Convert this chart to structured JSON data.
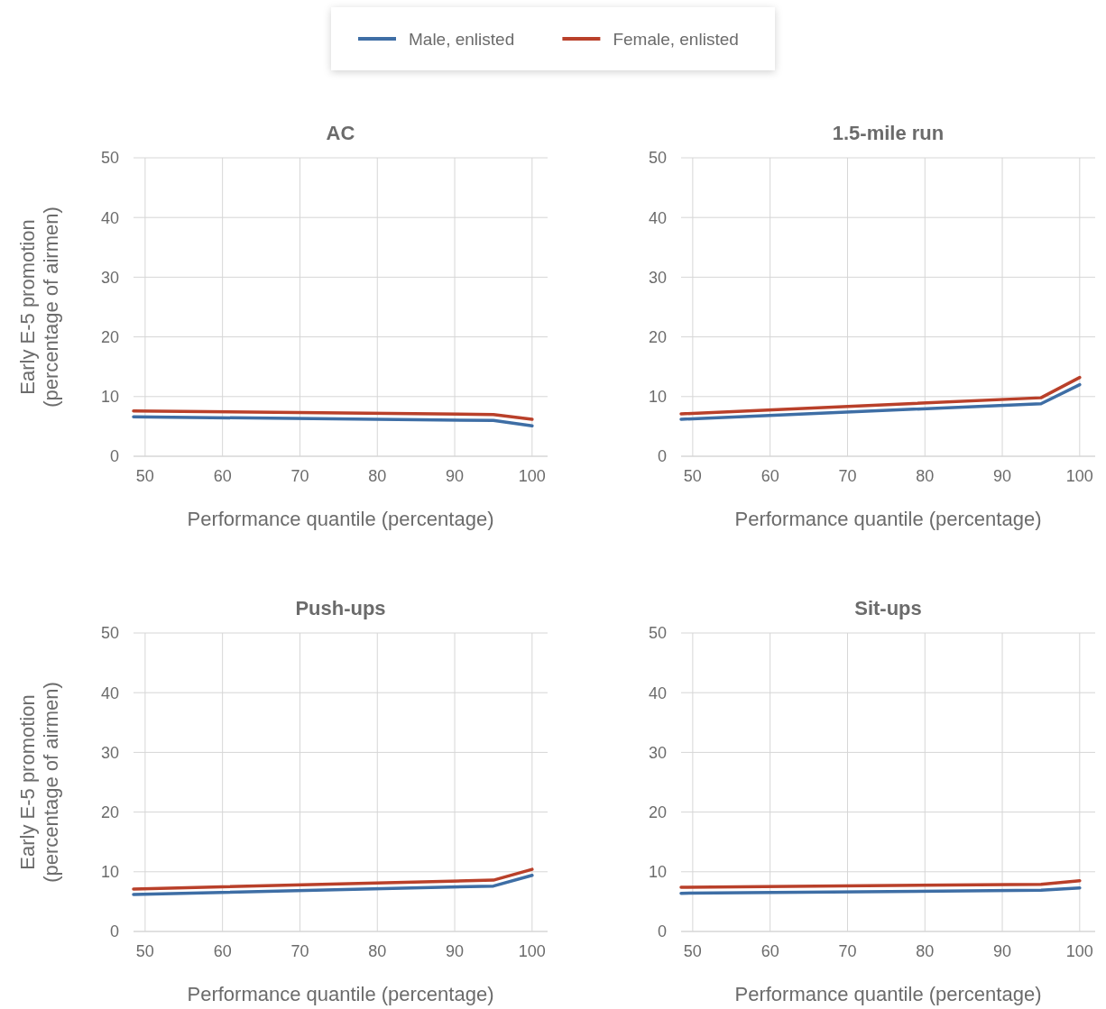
{
  "chart_data": [
    {
      "type": "line",
      "title": "AC",
      "xlabel": "Performance quantile (percentage)",
      "ylabel": "Early E-5 promotion (percentage of airmen)",
      "x": [
        48.5,
        95,
        100
      ],
      "xlim": [
        48.5,
        102
      ],
      "xticks": [
        50,
        60,
        70,
        80,
        90,
        100
      ],
      "ylim": [
        0,
        50
      ],
      "yticks": [
        0,
        10,
        20,
        30,
        40,
        50
      ],
      "grid": true,
      "legend": "top",
      "marker": "none",
      "series": [
        {
          "name": "Male, enlisted",
          "color": "#3e6ea5",
          "values": [
            6.6,
            6.0,
            5.1
          ]
        },
        {
          "name": "Female, enlisted",
          "color": "#b9402a",
          "values": [
            7.6,
            7.0,
            6.2
          ]
        }
      ]
    },
    {
      "type": "line",
      "title": "1.5-mile run",
      "xlabel": "Performance quantile (percentage)",
      "x": [
        48.5,
        95,
        100
      ],
      "xlim": [
        48.5,
        102
      ],
      "xticks": [
        50,
        60,
        70,
        80,
        90,
        100
      ],
      "ylim": [
        0,
        50
      ],
      "yticks": [
        0,
        10,
        20,
        30,
        40,
        50
      ],
      "grid": true,
      "marker": "none",
      "series": [
        {
          "color": "#3e6ea5",
          "values": [
            6.2,
            8.8,
            12.0
          ]
        },
        {
          "color": "#b9402a",
          "values": [
            7.1,
            9.8,
            13.2
          ]
        }
      ]
    },
    {
      "type": "line",
      "title": "Push-ups",
      "xlabel": "Performance quantile (percentage)",
      "ylabel": "Early E-5 promotion (percentage of airmen)",
      "x": [
        48.5,
        95,
        100
      ],
      "xlim": [
        48.5,
        102
      ],
      "xticks": [
        50,
        60,
        70,
        80,
        90,
        100
      ],
      "ylim": [
        0,
        50
      ],
      "yticks": [
        0,
        10,
        20,
        30,
        40,
        50
      ],
      "grid": true,
      "marker": "none",
      "series": [
        {
          "color": "#3e6ea5",
          "values": [
            6.2,
            7.6,
            9.4
          ]
        },
        {
          "color": "#b9402a",
          "values": [
            7.1,
            8.6,
            10.4
          ]
        }
      ]
    },
    {
      "type": "line",
      "title": "Sit-ups",
      "xlabel": "Performance quantile (percentage)",
      "x": [
        48.5,
        95,
        100
      ],
      "xlim": [
        48.5,
        102
      ],
      "xticks": [
        50,
        60,
        70,
        80,
        90,
        100
      ],
      "ylim": [
        0,
        50
      ],
      "yticks": [
        0,
        10,
        20,
        30,
        40,
        50
      ],
      "grid": true,
      "marker": "none",
      "series": [
        {
          "color": "#3e6ea5",
          "values": [
            6.4,
            6.9,
            7.3
          ]
        },
        {
          "color": "#b9402a",
          "values": [
            7.4,
            7.9,
            8.5
          ]
        }
      ]
    }
  ]
}
